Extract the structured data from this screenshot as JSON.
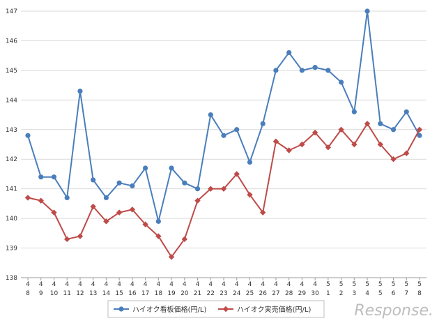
{
  "chart_data": {
    "type": "line",
    "categories": [
      [
        "4",
        "8"
      ],
      [
        "4",
        "9"
      ],
      [
        "4",
        "10"
      ],
      [
        "4",
        "11"
      ],
      [
        "4",
        "12"
      ],
      [
        "4",
        "13"
      ],
      [
        "4",
        "14"
      ],
      [
        "4",
        "15"
      ],
      [
        "4",
        "16"
      ],
      [
        "4",
        "17"
      ],
      [
        "4",
        "18"
      ],
      [
        "4",
        "19"
      ],
      [
        "4",
        "20"
      ],
      [
        "4",
        "21"
      ],
      [
        "4",
        "22"
      ],
      [
        "4",
        "23"
      ],
      [
        "4",
        "24"
      ],
      [
        "4",
        "25"
      ],
      [
        "4",
        "26"
      ],
      [
        "4",
        "27"
      ],
      [
        "4",
        "28"
      ],
      [
        "4",
        "29"
      ],
      [
        "4",
        "30"
      ],
      [
        "5",
        "1"
      ],
      [
        "5",
        "2"
      ],
      [
        "5",
        "3"
      ],
      [
        "5",
        "4"
      ],
      [
        "5",
        "5"
      ],
      [
        "5",
        "6"
      ],
      [
        "5",
        "7"
      ],
      [
        "5",
        "8"
      ]
    ],
    "ylim": [
      138,
      147
    ],
    "yticks": [
      138,
      139,
      140,
      141,
      142,
      143,
      144,
      145,
      146,
      147
    ],
    "ytick_labels": [
      "138",
      "139",
      "140",
      "141",
      "142",
      "143",
      "144",
      "145",
      "146",
      "147"
    ],
    "grid": true,
    "legend_position": "bottom",
    "series": [
      {
        "name": "ハイオク看板価格(円/L)",
        "color": "#4a7ebb",
        "marker": "circle",
        "values": [
          142.8,
          141.4,
          141.4,
          140.7,
          144.3,
          141.3,
          140.7,
          141.2,
          141.1,
          141.7,
          139.9,
          141.7,
          141.2,
          141.0,
          143.5,
          142.8,
          143.0,
          141.9,
          143.2,
          145.0,
          145.6,
          145.0,
          145.1,
          145.0,
          144.6,
          143.6,
          147.0,
          143.2,
          143.0,
          143.6,
          142.8
        ]
      },
      {
        "name": "ハイオク実売価格(円/L)",
        "color": "#be4b48",
        "marker": "diamond",
        "values": [
          140.7,
          140.6,
          140.2,
          139.3,
          139.4,
          140.4,
          139.9,
          140.2,
          140.3,
          139.8,
          139.4,
          138.7,
          139.3,
          140.6,
          141.0,
          141.0,
          141.5,
          140.8,
          140.2,
          142.6,
          142.3,
          142.5,
          142.9,
          142.4,
          143.0,
          142.5,
          143.2,
          142.5,
          142.0,
          142.2,
          143.0
        ]
      }
    ]
  },
  "watermark": {
    "text": "Response."
  }
}
